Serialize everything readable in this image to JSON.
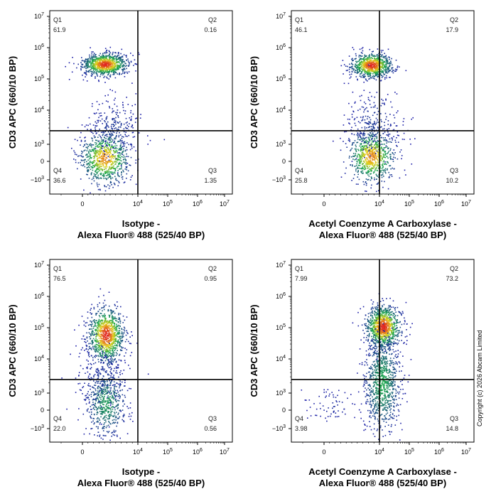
{
  "copyright": "Copyright (c) 2026 Abcam Limited",
  "colors": {
    "low": "#1a1aa8",
    "mid": "#19a84a",
    "high": "#e5d21a",
    "peak": "#e02020",
    "frame": "#000000"
  },
  "chart_data": [
    {
      "type": "scatter",
      "style": "flow-cytometry-density-dot-plot",
      "xlabel_lines": [
        "Isotype -",
        "Alexa Fluor® 488  (525/40 BP)"
      ],
      "ylabel": "CD3 APC (660/10 BP)",
      "xscale": "biexponential",
      "yscale": "biexponential",
      "x_ticks": [
        "0",
        "10^4",
        "10^5",
        "10^6",
        "10^7"
      ],
      "y_ticks": [
        "-10^3",
        "0",
        "10^3",
        "10^4",
        "10^5",
        "10^6",
        "10^7"
      ],
      "gate": {
        "x": 10000,
        "y": 2500
      },
      "quadrants": [
        {
          "name": "Q1",
          "percent": "61.9"
        },
        {
          "name": "Q2",
          "percent": "0.16"
        },
        {
          "name": "Q3",
          "percent": "1.35"
        },
        {
          "name": "Q4",
          "percent": "36.6"
        }
      ],
      "populations": [
        {
          "x_center": 4000,
          "y_center": 300000,
          "x_spread": 0.38,
          "y_spread": 0.18,
          "points": 900,
          "peak": 1.0
        },
        {
          "x_center": 4000,
          "y_center": 200,
          "x_spread": 0.42,
          "y_spread": 0.42,
          "points": 800,
          "peak": 0.85
        },
        {
          "x_center": 5500,
          "y_center": 3000,
          "x_spread": 0.45,
          "y_spread": 0.5,
          "points": 250,
          "peak": 0.1
        }
      ]
    },
    {
      "type": "scatter",
      "style": "flow-cytometry-density-dot-plot",
      "xlabel_lines": [
        "Acetyl Coenzyme A Carboxylase -",
        "Alexa Fluor® 488  (525/40 BP)"
      ],
      "ylabel": "CD3 APC (660/10 BP)",
      "xscale": "biexponential",
      "yscale": "biexponential",
      "x_ticks": [
        "0",
        "10^4",
        "10^5",
        "10^6",
        "10^7"
      ],
      "y_ticks": [
        "-10^3",
        "0",
        "10^3",
        "10^4",
        "10^5",
        "10^6",
        "10^7"
      ],
      "gate": {
        "x": 10000,
        "y": 2500
      },
      "quadrants": [
        {
          "name": "Q1",
          "percent": "46.1"
        },
        {
          "name": "Q2",
          "percent": "17.9"
        },
        {
          "name": "Q3",
          "percent": "10.2"
        },
        {
          "name": "Q4",
          "percent": "25.8"
        }
      ],
      "populations": [
        {
          "x_center": 8500,
          "y_center": 280000,
          "x_spread": 0.35,
          "y_spread": 0.2,
          "points": 800,
          "peak": 1.0
        },
        {
          "x_center": 8500,
          "y_center": 300,
          "x_spread": 0.4,
          "y_spread": 0.42,
          "points": 750,
          "peak": 0.85
        },
        {
          "x_center": 9000,
          "y_center": 4000,
          "x_spread": 0.45,
          "y_spread": 0.55,
          "points": 250,
          "peak": 0.1
        }
      ]
    },
    {
      "type": "scatter",
      "style": "flow-cytometry-density-dot-plot",
      "xlabel_lines": [
        "Isotype -",
        "Alexa Fluor® 488  (525/40 BP)"
      ],
      "ylabel": "CD3 APC (660/10 BP)",
      "xscale": "biexponential",
      "yscale": "biexponential",
      "x_ticks": [
        "0",
        "10^4",
        "10^5",
        "10^6",
        "10^7"
      ],
      "y_ticks": [
        "-10^3",
        "0",
        "10^3",
        "10^4",
        "10^5",
        "10^6",
        "10^7"
      ],
      "gate": {
        "x": 10000,
        "y": 2500
      },
      "quadrants": [
        {
          "name": "Q1",
          "percent": "76.5"
        },
        {
          "name": "Q2",
          "percent": "0.95"
        },
        {
          "name": "Q3",
          "percent": "0.56"
        },
        {
          "name": "Q4",
          "percent": "22.0"
        }
      ],
      "populations": [
        {
          "x_center": 4200,
          "y_center": 60000,
          "x_spread": 0.3,
          "y_spread": 0.45,
          "points": 1000,
          "peak": 1.0
        },
        {
          "x_center": 4200,
          "y_center": 400,
          "x_spread": 0.35,
          "y_spread": 0.55,
          "points": 550,
          "peak": 0.4
        },
        {
          "x_center": 3500,
          "y_center": 3000,
          "x_spread": 0.5,
          "y_spread": 0.6,
          "points": 200,
          "peak": 0.08
        }
      ]
    },
    {
      "type": "scatter",
      "style": "flow-cytometry-density-dot-plot",
      "xlabel_lines": [
        "Acetyl Coenzyme A Carboxylase -",
        "Alexa Fluor® 488  (525/40 BP)"
      ],
      "ylabel": "CD3 APC (660/10 BP)",
      "xscale": "biexponential",
      "yscale": "biexponential",
      "x_ticks": [
        "0",
        "10^4",
        "10^5",
        "10^6",
        "10^7"
      ],
      "y_ticks": [
        "-10^3",
        "0",
        "10^3",
        "10^4",
        "10^5",
        "10^6",
        "10^7"
      ],
      "gate": {
        "x": 10000,
        "y": 2500
      },
      "quadrants": [
        {
          "name": "Q1",
          "percent": "7.99"
        },
        {
          "name": "Q2",
          "percent": "73.2"
        },
        {
          "name": "Q3",
          "percent": "14.8"
        },
        {
          "name": "Q4",
          "percent": "3.98"
        }
      ],
      "populations": [
        {
          "x_center": 13000,
          "y_center": 110000,
          "x_spread": 0.3,
          "y_spread": 0.35,
          "points": 1000,
          "peak": 1.0
        },
        {
          "x_center": 12000,
          "y_center": 2000,
          "x_spread": 0.3,
          "y_spread": 0.8,
          "points": 900,
          "peak": 0.45
        },
        {
          "x_center": 1500,
          "y_center": 300,
          "x_spread": 0.45,
          "y_spread": 0.3,
          "points": 70,
          "peak": 0.05
        }
      ]
    }
  ]
}
